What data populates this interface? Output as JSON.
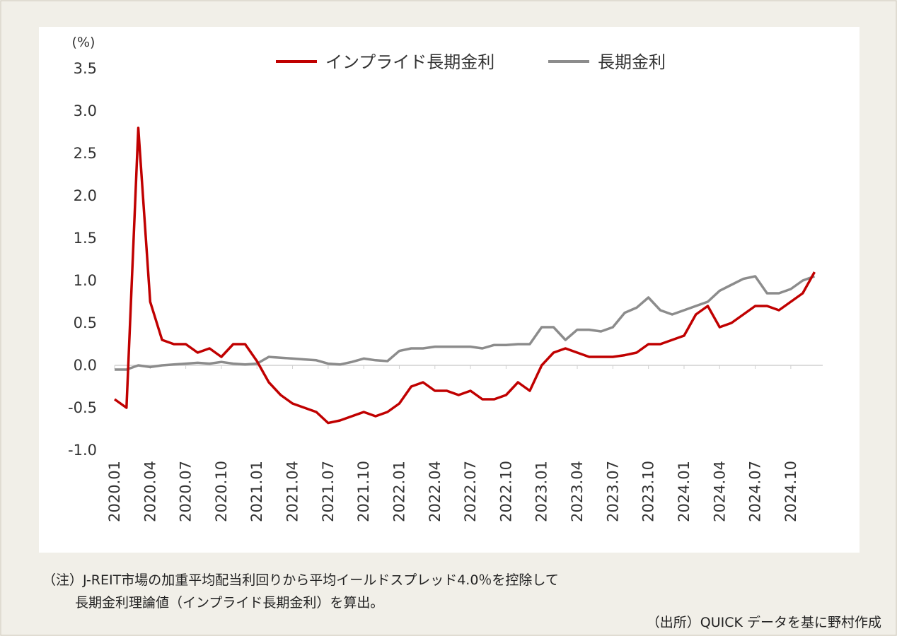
{
  "chart_data": {
    "type": "line",
    "y_unit": "(%)",
    "x": [
      "2020.01",
      "2020.02",
      "2020.03",
      "2020.04",
      "2020.05",
      "2020.06",
      "2020.07",
      "2020.08",
      "2020.09",
      "2020.10",
      "2020.11",
      "2020.12",
      "2021.01",
      "2021.02",
      "2021.03",
      "2021.04",
      "2021.05",
      "2021.06",
      "2021.07",
      "2021.08",
      "2021.09",
      "2021.10",
      "2021.11",
      "2021.12",
      "2022.01",
      "2022.02",
      "2022.03",
      "2022.04",
      "2022.05",
      "2022.06",
      "2022.07",
      "2022.08",
      "2022.09",
      "2022.10",
      "2022.11",
      "2022.12",
      "2023.01",
      "2023.02",
      "2023.03",
      "2023.04",
      "2023.05",
      "2023.06",
      "2023.07",
      "2023.08",
      "2023.09",
      "2023.10",
      "2023.11",
      "2023.12",
      "2024.01",
      "2024.02",
      "2024.03",
      "2024.04",
      "2024.05",
      "2024.06",
      "2024.07",
      "2024.08",
      "2024.09",
      "2024.10",
      "2024.11",
      "2024.12"
    ],
    "series": [
      {
        "name": "インプライド長期金利",
        "color": "#c00000",
        "values": [
          -0.4,
          -0.5,
          2.8,
          0.75,
          0.3,
          0.25,
          0.25,
          0.15,
          0.2,
          0.1,
          0.25,
          0.25,
          0.05,
          -0.2,
          -0.35,
          -0.45,
          -0.5,
          -0.55,
          -0.68,
          -0.65,
          -0.6,
          -0.55,
          -0.6,
          -0.55,
          -0.45,
          -0.25,
          -0.2,
          -0.3,
          -0.3,
          -0.35,
          -0.3,
          -0.4,
          -0.4,
          -0.35,
          -0.2,
          -0.3,
          0.0,
          0.15,
          0.2,
          0.15,
          0.1,
          0.1,
          0.1,
          0.12,
          0.15,
          0.25,
          0.25,
          0.3,
          0.35,
          0.6,
          0.7,
          0.45,
          0.5,
          0.6,
          0.7,
          0.7,
          0.65,
          0.75,
          0.85,
          1.1
        ]
      },
      {
        "name": "長期金利",
        "color": "#8c8c8c",
        "values": [
          -0.05,
          -0.05,
          0.0,
          -0.02,
          0.0,
          0.01,
          0.02,
          0.03,
          0.02,
          0.04,
          0.02,
          0.01,
          0.02,
          0.1,
          0.09,
          0.08,
          0.07,
          0.06,
          0.02,
          0.01,
          0.04,
          0.08,
          0.06,
          0.05,
          0.17,
          0.2,
          0.2,
          0.22,
          0.22,
          0.22,
          0.22,
          0.2,
          0.24,
          0.24,
          0.25,
          0.25,
          0.45,
          0.45,
          0.3,
          0.42,
          0.42,
          0.4,
          0.45,
          0.62,
          0.68,
          0.8,
          0.65,
          0.6,
          0.65,
          0.7,
          0.75,
          0.88,
          0.95,
          1.02,
          1.05,
          0.85,
          0.85,
          0.9,
          1.0,
          1.05
        ]
      }
    ],
    "ylim": [
      -1,
      3.5
    ],
    "yticks": [
      {
        "value": -1,
        "label": "-1.0"
      },
      -0.5,
      {
        "value": 0,
        "label": "0.0"
      },
      0.5,
      {
        "value": 1,
        "label": "1.0"
      },
      1.5,
      {
        "value": 2,
        "label": "2.0"
      },
      2.5,
      {
        "value": 3,
        "label": "3.0"
      },
      3.5
    ],
    "xticks": [
      "2020.01",
      "2020.04",
      "2020.07",
      "2020.10",
      "2021.01",
      "2021.04",
      "2021.07",
      "2021.10",
      "2022.01",
      "2022.04",
      "2022.07",
      "2022.10",
      "2023.01",
      "2023.04",
      "2023.07",
      "2023.10",
      "2024.01",
      "2024.04",
      "2024.07",
      "2024.10"
    ]
  },
  "notes": {
    "line1": "（注）J-REIT市場の加重平均配当利回りから平均イールドスプレッド4.0％を控除して",
    "line2": "長期金利理論値（インプライド長期金利）を算出。",
    "source": "（出所）QUICK データを基に野村作成"
  }
}
